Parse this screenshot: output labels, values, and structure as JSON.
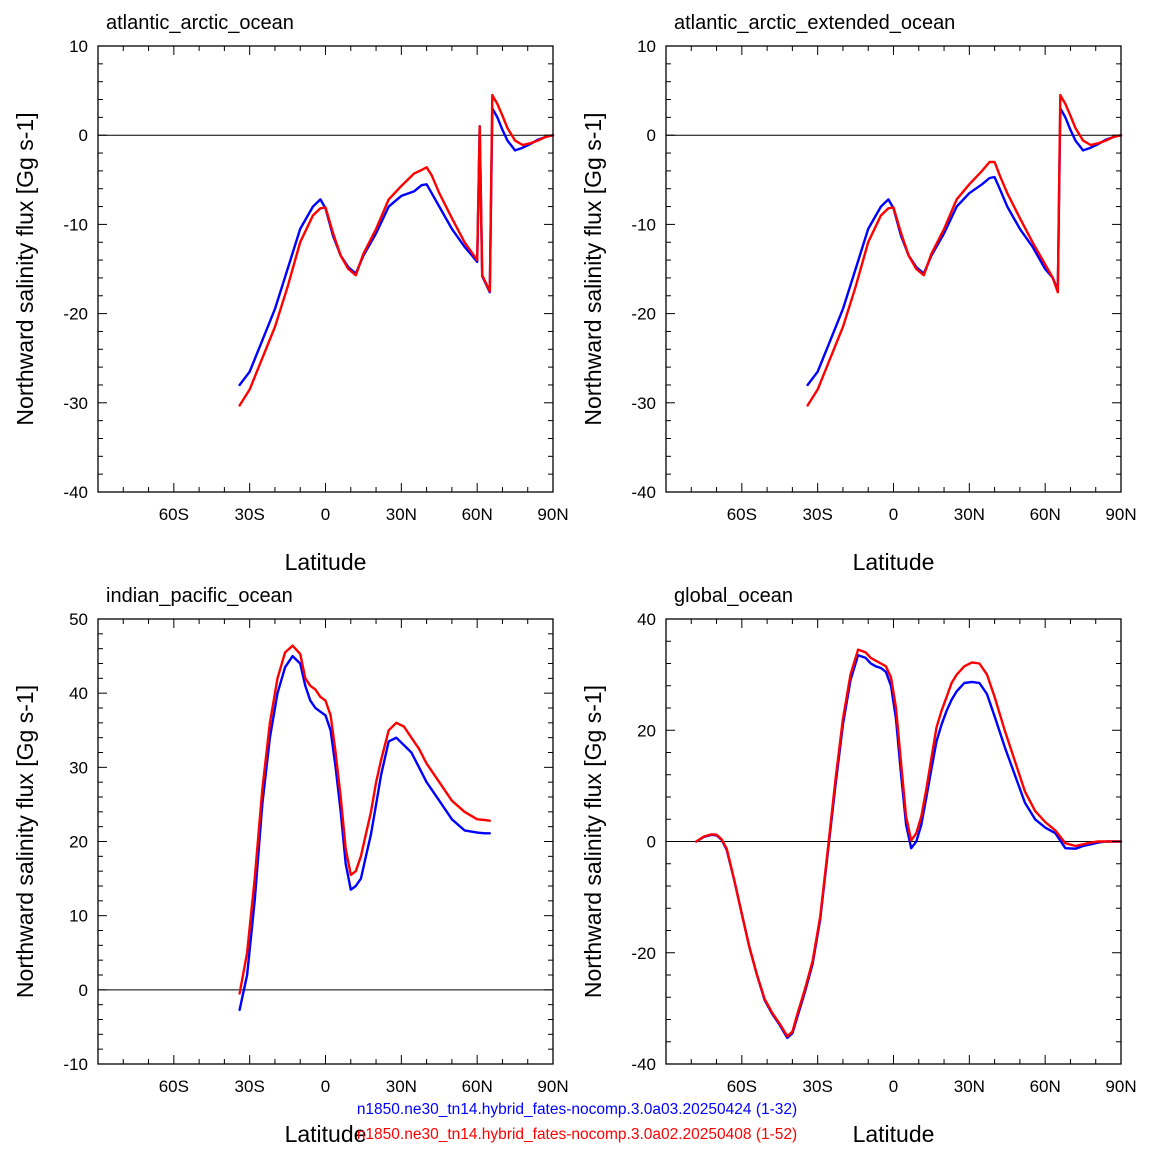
{
  "colors": {
    "case1": "#0000ff",
    "case2": "#ff0000",
    "axis": "#000000",
    "background": "#ffffff"
  },
  "legend": {
    "case1": "n1850.ne30_tn14.hybrid_fates-nocomp.3.0a03.20250424 (1-32)",
    "case2": "n1850.ne30_tn14.hybrid_fates-nocomp.3.0a02.20250408 (1-52)"
  },
  "chart_data": [
    {
      "type": "line",
      "title": "atlantic_arctic_ocean",
      "xlabel": "Latitude",
      "ylabel": "Northward salinity flux [Gg s-1]",
      "xlim": [
        -90,
        90
      ],
      "ylim": [
        -40,
        10
      ],
      "xticks": [
        -60,
        -30,
        0,
        30,
        60,
        90
      ],
      "xticklabels": [
        "60S",
        "30S",
        "0",
        "30N",
        "60N",
        "90N"
      ],
      "yticks": [
        -40,
        -30,
        -20,
        -10,
        0,
        10
      ],
      "yticklabels": [
        "-40",
        "-30",
        "-20",
        "-10",
        "0",
        "10"
      ],
      "zero_line": true,
      "series": [
        {
          "x": [
            -34,
            -30,
            -25,
            -20,
            -15,
            -10,
            -5,
            -2,
            0,
            3,
            6,
            9,
            12,
            15,
            20,
            25,
            30,
            35,
            38,
            40,
            42,
            45,
            50,
            55,
            58,
            60,
            61,
            62,
            65,
            66,
            68,
            70,
            72,
            75,
            78,
            81,
            84,
            87,
            90
          ],
          "y": [
            -28,
            -26.5,
            -23,
            -19.5,
            -15,
            -10.5,
            -8,
            -7.2,
            -8.2,
            -11.3,
            -13.5,
            -14.8,
            -15.5,
            -13.5,
            -11,
            -8,
            -6.8,
            -6.3,
            -5.6,
            -5.5,
            -6.5,
            -8,
            -10.5,
            -12.5,
            -13.5,
            -14.2,
            1,
            -15.8,
            -17.6,
            3,
            2,
            0.6,
            -0.6,
            -1.7,
            -1.4,
            -1,
            -0.5,
            -0.2,
            0
          ]
        },
        {
          "x": [
            -34,
            -30,
            -25,
            -20,
            -15,
            -10,
            -5,
            -2,
            0,
            3,
            6,
            9,
            12,
            15,
            20,
            25,
            30,
            35,
            38,
            40,
            42,
            45,
            50,
            55,
            58,
            60,
            61,
            62,
            65,
            66,
            68,
            70,
            72,
            75,
            78,
            81,
            84,
            87,
            90
          ],
          "y": [
            -30.3,
            -28.5,
            -25,
            -21.5,
            -17,
            -12,
            -9,
            -8.2,
            -8.1,
            -11,
            -13.5,
            -15,
            -15.7,
            -13.3,
            -10.5,
            -7.2,
            -5.7,
            -4.3,
            -3.9,
            -3.6,
            -4.5,
            -6.5,
            -9.3,
            -12,
            -13.2,
            -14,
            1,
            -15.7,
            -17.5,
            4.5,
            3.5,
            2.2,
            0.8,
            -0.6,
            -1.1,
            -0.9,
            -0.6,
            -0.2,
            0
          ]
        }
      ]
    },
    {
      "type": "line",
      "title": "atlantic_arctic_extended_ocean",
      "xlabel": "Latitude",
      "ylabel": "Northward salinity flux [Gg s-1]",
      "xlim": [
        -90,
        90
      ],
      "ylim": [
        -40,
        10
      ],
      "xticks": [
        -60,
        -30,
        0,
        30,
        60,
        90
      ],
      "xticklabels": [
        "60S",
        "30S",
        "0",
        "30N",
        "60N",
        "90N"
      ],
      "yticks": [
        -40,
        -30,
        -20,
        -10,
        0,
        10
      ],
      "yticklabels": [
        "-40",
        "-30",
        "-20",
        "-10",
        "0",
        "10"
      ],
      "zero_line": true,
      "series": [
        {
          "x": [
            -34,
            -30,
            -25,
            -20,
            -15,
            -10,
            -5,
            -2,
            0,
            3,
            6,
            9,
            12,
            15,
            20,
            25,
            30,
            35,
            38,
            40,
            42,
            45,
            50,
            55,
            60,
            63,
            65,
            66,
            68,
            70,
            72,
            75,
            78,
            81,
            84,
            87,
            90
          ],
          "y": [
            -28,
            -26.5,
            -23,
            -19.5,
            -15,
            -10.5,
            -8,
            -7.2,
            -8.2,
            -11.3,
            -13.5,
            -14.8,
            -15.5,
            -13.5,
            -11,
            -8,
            -6.5,
            -5.5,
            -4.8,
            -4.7,
            -6,
            -8,
            -10.5,
            -12.5,
            -15,
            -16,
            -17.4,
            3,
            2,
            0.6,
            -0.6,
            -1.7,
            -1.4,
            -1,
            -0.5,
            -0.2,
            0
          ]
        },
        {
          "x": [
            -34,
            -30,
            -25,
            -20,
            -15,
            -10,
            -5,
            -2,
            0,
            3,
            6,
            9,
            12,
            15,
            20,
            25,
            30,
            35,
            38,
            40,
            42,
            45,
            50,
            55,
            60,
            63,
            65,
            66,
            68,
            70,
            72,
            75,
            78,
            81,
            84,
            87,
            90
          ],
          "y": [
            -30.3,
            -28.5,
            -25,
            -21.5,
            -17,
            -12,
            -9,
            -8.2,
            -8.1,
            -11,
            -13.5,
            -15,
            -15.7,
            -13.3,
            -10.5,
            -7.2,
            -5.5,
            -4,
            -3,
            -3,
            -4.5,
            -6.5,
            -9.3,
            -12,
            -14.5,
            -16,
            -17.6,
            4.5,
            3.5,
            2.2,
            0.8,
            -0.6,
            -1.1,
            -0.9,
            -0.6,
            -0.2,
            0
          ]
        }
      ]
    },
    {
      "type": "line",
      "title": "indian_pacific_ocean",
      "xlabel": "Latitude",
      "ylabel": "Northward salinity flux [Gg s-1]",
      "xlim": [
        -90,
        90
      ],
      "ylim": [
        -10,
        50
      ],
      "xticks": [
        -60,
        -30,
        0,
        30,
        60,
        90
      ],
      "xticklabels": [
        "60S",
        "30S",
        "0",
        "30N",
        "60N",
        "90N"
      ],
      "yticks": [
        -10,
        0,
        10,
        20,
        30,
        40,
        50
      ],
      "yticklabels": [
        "-10",
        "0",
        "10",
        "20",
        "30",
        "40",
        "50"
      ],
      "zero_line": true,
      "series": [
        {
          "x": [
            -34,
            -31,
            -28,
            -25,
            -22,
            -19,
            -16,
            -13,
            -10,
            -8,
            -6,
            -4,
            -2,
            0,
            2,
            4,
            6,
            8,
            10,
            12,
            14,
            16,
            18,
            20,
            22,
            25,
            28,
            31,
            34,
            37,
            40,
            45,
            50,
            55,
            60,
            63,
            65
          ],
          "y": [
            -2.7,
            2,
            12,
            25,
            34,
            40,
            43.5,
            45,
            44,
            41,
            39,
            38,
            37.5,
            37,
            35,
            30,
            24,
            17,
            13.5,
            14,
            15,
            18,
            21,
            25,
            29,
            33.5,
            34,
            33,
            32,
            30,
            28,
            25.5,
            23,
            21.5,
            21.2,
            21.1,
            21.1
          ]
        },
        {
          "x": [
            -34,
            -31,
            -28,
            -25,
            -22,
            -19,
            -16,
            -13,
            -10,
            -8,
            -6,
            -4,
            -2,
            0,
            2,
            4,
            6,
            8,
            10,
            12,
            14,
            16,
            18,
            20,
            22,
            25,
            28,
            31,
            34,
            37,
            40,
            45,
            50,
            55,
            60,
            63,
            65
          ],
          "y": [
            -0.5,
            5,
            15,
            27,
            36,
            42,
            45.5,
            46.4,
            45.3,
            42,
            41,
            40.5,
            39.5,
            39,
            37,
            32,
            26,
            19,
            15.5,
            16,
            18,
            21,
            24,
            28,
            31,
            35,
            36,
            35.5,
            34,
            32.5,
            30.5,
            28,
            25.5,
            24,
            23,
            22.9,
            22.8
          ]
        }
      ]
    },
    {
      "type": "line",
      "title": "global_ocean",
      "xlabel": "Latitude",
      "ylabel": "Northward salinity flux [Gg s-1]",
      "xlim": [
        -90,
        90
      ],
      "ylim": [
        -40,
        40
      ],
      "xticks": [
        -60,
        -30,
        0,
        30,
        60,
        90
      ],
      "xticklabels": [
        "60S",
        "30S",
        "0",
        "30N",
        "60N",
        "90N"
      ],
      "yticks": [
        -40,
        -20,
        0,
        20,
        40
      ],
      "yticklabels": [
        "-40",
        "-20",
        "0",
        "20",
        "40"
      ],
      "zero_line": true,
      "series": [
        {
          "x": [
            -78,
            -75,
            -72,
            -70,
            -68,
            -66,
            -63,
            -60,
            -57,
            -54,
            -51,
            -48,
            -45,
            -42,
            -40,
            -38,
            -35,
            -32,
            -29,
            -26,
            -23,
            -20,
            -17,
            -14,
            -11,
            -9,
            -7,
            -5,
            -3,
            -1,
            1,
            3,
            5,
            7,
            9,
            11,
            13,
            15,
            17,
            19,
            21,
            23,
            25,
            28,
            31,
            34,
            37,
            40,
            44,
            48,
            52,
            56,
            60,
            64,
            68,
            72,
            75,
            78,
            81,
            84,
            87,
            90
          ],
          "y": [
            0,
            0.8,
            1.2,
            1.1,
            0.3,
            -1.5,
            -7,
            -13,
            -19,
            -24,
            -28.5,
            -31,
            -33,
            -35.3,
            -34.5,
            -31.5,
            -27,
            -22,
            -14,
            -2,
            10,
            21,
            29,
            33.5,
            33,
            32,
            31.5,
            31.2,
            30.5,
            28,
            22,
            12,
            3,
            -1.2,
            0,
            3,
            8,
            13,
            18,
            21,
            23.5,
            25.5,
            27,
            28.5,
            28.7,
            28.5,
            26.5,
            22.5,
            17,
            12,
            7,
            4,
            2.5,
            1.5,
            -1.2,
            -1.3,
            -0.8,
            -0.5,
            -0.2,
            0,
            0,
            0
          ]
        },
        {
          "x": [
            -78,
            -75,
            -72,
            -70,
            -68,
            -66,
            -63,
            -60,
            -57,
            -54,
            -51,
            -48,
            -45,
            -42,
            -40,
            -38,
            -35,
            -32,
            -29,
            -26,
            -23,
            -20,
            -17,
            -14,
            -11,
            -9,
            -7,
            -5,
            -3,
            -1,
            1,
            3,
            5,
            7,
            9,
            11,
            13,
            15,
            17,
            19,
            21,
            23,
            25,
            28,
            31,
            34,
            37,
            40,
            44,
            48,
            52,
            56,
            60,
            64,
            68,
            72,
            75,
            78,
            81,
            84,
            87,
            90
          ],
          "y": [
            0,
            0.9,
            1.3,
            1.2,
            0.4,
            -1.3,
            -7,
            -13,
            -19,
            -24,
            -28.3,
            -30.8,
            -32.8,
            -35,
            -34.2,
            -31,
            -26.5,
            -21.5,
            -13.5,
            -1.5,
            11,
            22,
            30,
            34.5,
            34,
            33,
            32.5,
            32,
            31.5,
            29.5,
            24,
            14,
            4.5,
            0.2,
            1.5,
            4.5,
            9.5,
            15,
            20.5,
            23.5,
            26,
            28.5,
            30,
            31.5,
            32.2,
            32,
            30,
            26,
            20,
            14.5,
            9,
            5.5,
            3.5,
            2,
            -0.3,
            -0.8,
            -0.5,
            -0.2,
            0,
            0,
            0,
            0
          ]
        }
      ]
    }
  ]
}
